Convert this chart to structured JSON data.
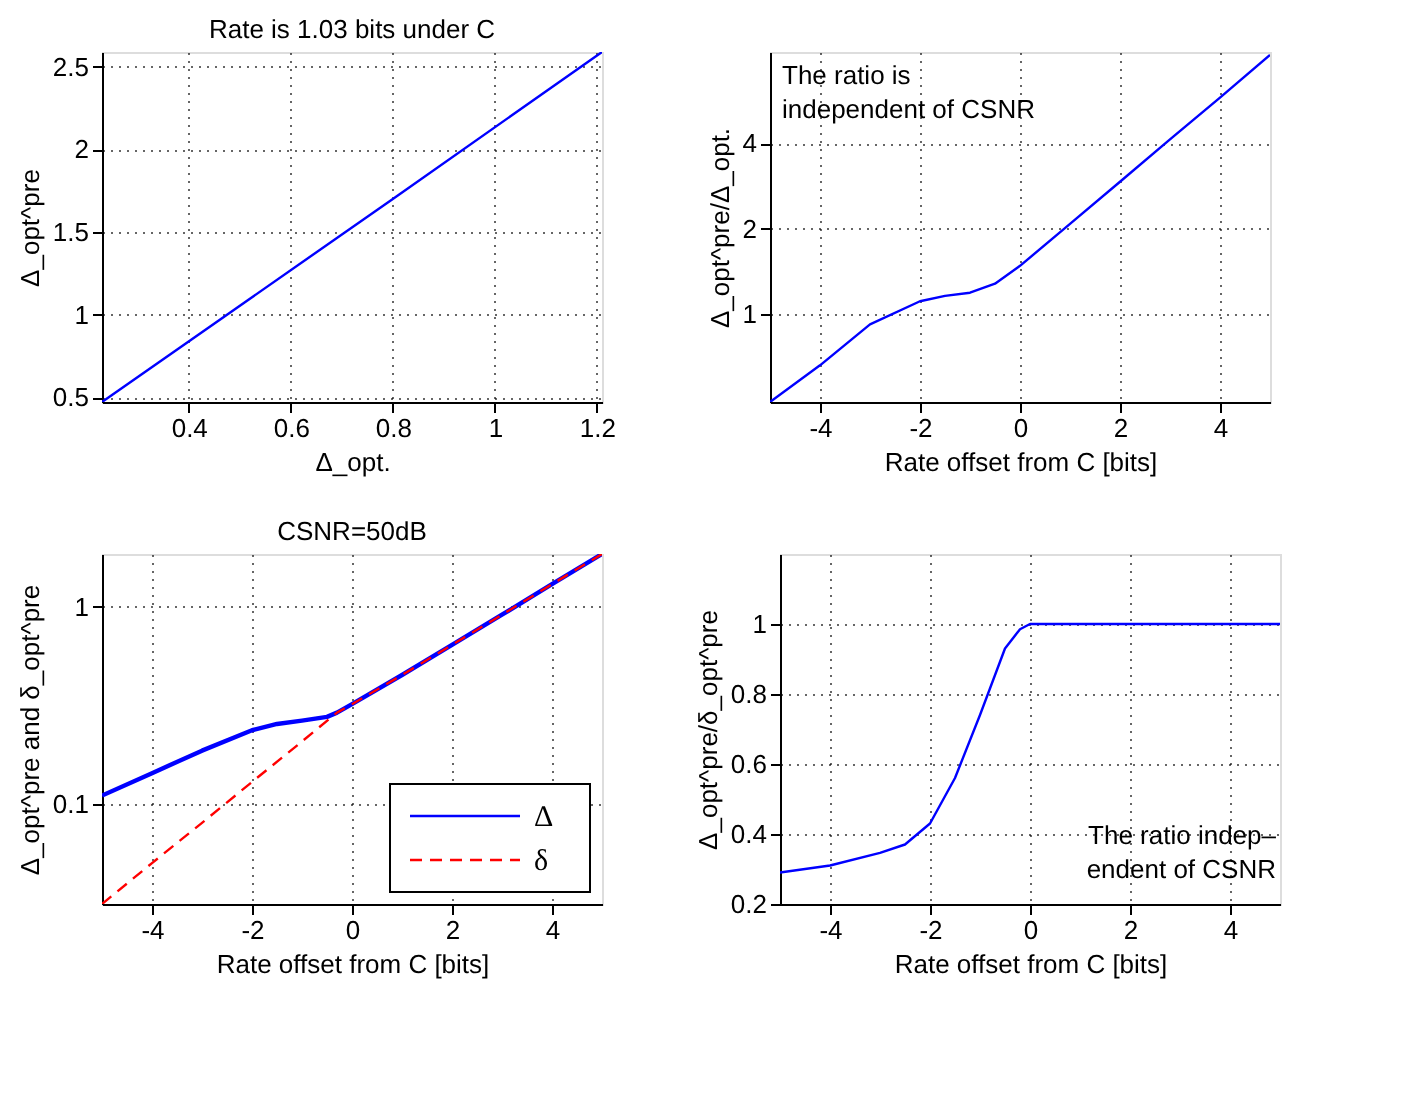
{
  "chart_data": [
    {
      "type": "line",
      "title": "Rate is 1.03 bits under C",
      "xlabel": "Δ_opt.",
      "ylabel": "Δ_opt^pre",
      "xlim": [
        0.23,
        1.21
      ],
      "ylim": [
        0.47,
        2.59
      ],
      "xticks": [
        0.4,
        0.6,
        0.8,
        1,
        1.2
      ],
      "yticks": [
        0.5,
        1,
        1.5,
        2,
        2.5
      ],
      "grid": true,
      "line_style": "solid",
      "series": [
        {
          "color": "#0000ff",
          "x": [
            0.23,
            0.8,
            1.21
          ],
          "values": [
            0.47,
            1.7,
            2.59
          ]
        }
      ]
    },
    {
      "type": "line",
      "xlabel": "Rate offset from C [bits]",
      "ylabel": "Δ_opt^pre/Δ_opt.",
      "xlim": [
        -5,
        5
      ],
      "ylim": [
        0.49,
        8.4
      ],
      "xticks": [
        -4,
        -2,
        0,
        2,
        4
      ],
      "yticks": [
        1,
        2,
        4
      ],
      "log": "y",
      "grid": true,
      "line_style": "solid",
      "annotations": [
        "The ratio is\nindependent of CSNR"
      ],
      "series": [
        {
          "color": "#0000ff",
          "x": [
            -5,
            -4,
            -3,
            -2,
            -1.5,
            -1,
            -0.5,
            0,
            1,
            2,
            3,
            4,
            5
          ],
          "values": [
            0.49,
            0.66,
            0.92,
            1.11,
            1.16,
            1.19,
            1.28,
            1.48,
            2.08,
            2.93,
            4.13,
            5.8,
            8.2
          ]
        }
      ]
    },
    {
      "type": "line",
      "title": "CSNR=50dB",
      "xlabel": "Rate offset from C [bits]",
      "ylabel": "Δ_opt^pre and δ_opt^pre",
      "xlim": [
        -5,
        5
      ],
      "ylim": [
        0.031,
        1.85
      ],
      "xticks": [
        -4,
        -2,
        0,
        2,
        4
      ],
      "yticks": [
        0.1,
        1
      ],
      "log": "y",
      "grid": true,
      "legend": "bottom right",
      "series": [
        {
          "name": "Δ",
          "color": "#0000ff",
          "line_style": "solid",
          "x": [
            -5,
            -4,
            -3,
            -2,
            -1.5,
            -1,
            -0.5,
            -0.3,
            0,
            1,
            2,
            3,
            4,
            5
          ],
          "values": [
            0.11,
            0.143,
            0.186,
            0.236,
            0.254,
            0.264,
            0.276,
            0.29,
            0.32,
            0.45,
            0.64,
            0.91,
            1.3,
            1.85
          ]
        },
        {
          "name": "δ",
          "color": "#ff0000",
          "line_style": "dashed",
          "x": [
            -5,
            -4,
            -3,
            -2,
            -1,
            -0.3,
            0,
            1,
            2,
            3,
            4,
            5
          ],
          "values": [
            0.031,
            0.05,
            0.08,
            0.129,
            0.207,
            0.29,
            0.32,
            0.45,
            0.64,
            0.91,
            1.3,
            1.85
          ]
        }
      ]
    },
    {
      "type": "line",
      "xlabel": "Rate offset from C [bits]",
      "ylabel": "Δ_opt^pre/δ_opt^pre",
      "xlim": [
        -5,
        5
      ],
      "ylim": [
        0.2,
        1.2
      ],
      "xticks": [
        -4,
        -2,
        0,
        2,
        4
      ],
      "yticks": [
        0.2,
        0.4,
        0.6,
        0.8,
        1
      ],
      "grid": true,
      "line_style": "solid",
      "annotations": [
        "The ratio indep–\nendent of CSNR"
      ],
      "series": [
        {
          "color": "#0000ff",
          "x": [
            -5,
            -4,
            -3,
            -2.5,
            -2,
            -1.5,
            -1,
            -0.5,
            -0.2,
            0,
            5
          ],
          "values": [
            0.29,
            0.31,
            0.346,
            0.37,
            0.43,
            0.56,
            0.74,
            0.93,
            0.985,
            1,
            1
          ]
        }
      ]
    }
  ]
}
